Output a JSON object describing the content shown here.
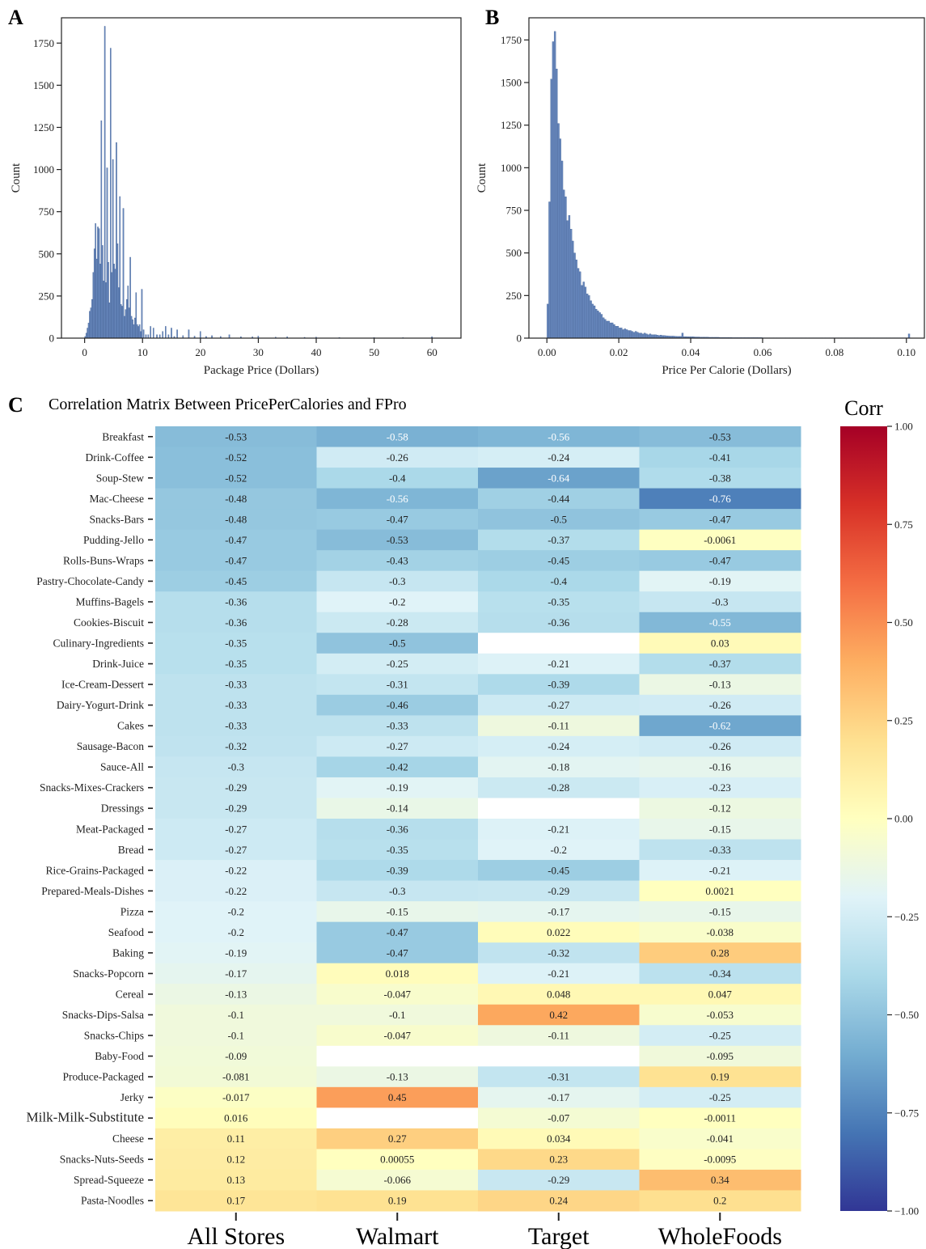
{
  "chart_data": [
    {
      "type": "histogram",
      "panel_label": "A",
      "xlabel": "Package Price (Dollars)",
      "ylabel": "Count",
      "xlim": [
        -4,
        65
      ],
      "ylim": [
        0,
        1900
      ],
      "xticks": [
        0,
        10,
        20,
        30,
        40,
        50,
        60
      ],
      "yticks": [
        0,
        250,
        500,
        750,
        1000,
        1250,
        1500,
        1750
      ],
      "bar_color": "#4c72b0",
      "bins": [
        {
          "x": 0.1,
          "v": 10
        },
        {
          "x": 0.3,
          "v": 30
        },
        {
          "x": 0.5,
          "v": 60
        },
        {
          "x": 0.7,
          "v": 90
        },
        {
          "x": 0.9,
          "v": 160
        },
        {
          "x": 1.1,
          "v": 180
        },
        {
          "x": 1.3,
          "v": 230
        },
        {
          "x": 1.5,
          "v": 390
        },
        {
          "x": 1.7,
          "v": 530
        },
        {
          "x": 1.9,
          "v": 680
        },
        {
          "x": 2.1,
          "v": 470
        },
        {
          "x": 2.3,
          "v": 660
        },
        {
          "x": 2.5,
          "v": 650
        },
        {
          "x": 2.7,
          "v": 440
        },
        {
          "x": 2.9,
          "v": 1290
        },
        {
          "x": 3.1,
          "v": 550
        },
        {
          "x": 3.3,
          "v": 340
        },
        {
          "x": 3.5,
          "v": 1850
        },
        {
          "x": 3.7,
          "v": 330
        },
        {
          "x": 3.9,
          "v": 1010
        },
        {
          "x": 4.1,
          "v": 450
        },
        {
          "x": 4.3,
          "v": 210
        },
        {
          "x": 4.5,
          "v": 1720
        },
        {
          "x": 4.7,
          "v": 390
        },
        {
          "x": 4.9,
          "v": 1060
        },
        {
          "x": 5.1,
          "v": 440
        },
        {
          "x": 5.3,
          "v": 410
        },
        {
          "x": 5.5,
          "v": 1160
        },
        {
          "x": 5.7,
          "v": 560
        },
        {
          "x": 5.9,
          "v": 300
        },
        {
          "x": 6.1,
          "v": 840
        },
        {
          "x": 6.3,
          "v": 200
        },
        {
          "x": 6.5,
          "v": 190
        },
        {
          "x": 6.7,
          "v": 770
        },
        {
          "x": 6.9,
          "v": 130
        },
        {
          "x": 7.1,
          "v": 170
        },
        {
          "x": 7.3,
          "v": 230
        },
        {
          "x": 7.5,
          "v": 310
        },
        {
          "x": 7.7,
          "v": 180
        },
        {
          "x": 7.9,
          "v": 480
        },
        {
          "x": 8.1,
          "v": 130
        },
        {
          "x": 8.3,
          "v": 110
        },
        {
          "x": 8.5,
          "v": 80
        },
        {
          "x": 8.7,
          "v": 120
        },
        {
          "x": 8.9,
          "v": 270
        },
        {
          "x": 9.1,
          "v": 80
        },
        {
          "x": 9.3,
          "v": 70
        },
        {
          "x": 9.5,
          "v": 80
        },
        {
          "x": 9.7,
          "v": 40
        },
        {
          "x": 9.9,
          "v": 290
        },
        {
          "x": 10.2,
          "v": 50
        },
        {
          "x": 10.6,
          "v": 20
        },
        {
          "x": 11.0,
          "v": 20
        },
        {
          "x": 11.4,
          "v": 70
        },
        {
          "x": 11.9,
          "v": 60
        },
        {
          "x": 12.5,
          "v": 20
        },
        {
          "x": 13.0,
          "v": 20
        },
        {
          "x": 13.5,
          "v": 40
        },
        {
          "x": 14.0,
          "v": 70
        },
        {
          "x": 14.5,
          "v": 20
        },
        {
          "x": 15.0,
          "v": 60
        },
        {
          "x": 15.5,
          "v": 10
        },
        {
          "x": 16.0,
          "v": 50
        },
        {
          "x": 17.0,
          "v": 15
        },
        {
          "x": 18.0,
          "v": 50
        },
        {
          "x": 19.0,
          "v": 12
        },
        {
          "x": 20.0,
          "v": 40
        },
        {
          "x": 21.0,
          "v": 10
        },
        {
          "x": 22.0,
          "v": 15
        },
        {
          "x": 23.5,
          "v": 10
        },
        {
          "x": 25.0,
          "v": 20
        },
        {
          "x": 27.0,
          "v": 8
        },
        {
          "x": 29.0,
          "v": 8
        },
        {
          "x": 30.0,
          "v": 12
        },
        {
          "x": 33.0,
          "v": 6
        },
        {
          "x": 35.0,
          "v": 8
        },
        {
          "x": 38.0,
          "v": 5
        },
        {
          "x": 40.0,
          "v": 6
        },
        {
          "x": 44.0,
          "v": 4
        },
        {
          "x": 50.0,
          "v": 4
        },
        {
          "x": 55.0,
          "v": 3
        },
        {
          "x": 60.0,
          "v": 8
        }
      ]
    },
    {
      "type": "histogram",
      "panel_label": "B",
      "xlabel": "Price Per Calorie (Dollars)",
      "ylabel": "Count",
      "xlim": [
        -0.005,
        0.105
      ],
      "ylim": [
        0,
        1880
      ],
      "xticks": [
        "0.00",
        "0.02",
        "0.04",
        "0.06",
        "0.08",
        "0.10"
      ],
      "yticks": [
        0,
        250,
        500,
        750,
        1000,
        1250,
        1500,
        1750
      ],
      "bar_color": "#4c72b0",
      "bin_width": 0.0005,
      "bin_start": 0.0,
      "values": [
        200,
        800,
        1520,
        1740,
        1800,
        1580,
        1260,
        1170,
        1040,
        870,
        830,
        690,
        720,
        640,
        570,
        500,
        460,
        410,
        390,
        310,
        330,
        300,
        260,
        250,
        220,
        200,
        190,
        170,
        160,
        150,
        140,
        120,
        110,
        100,
        100,
        90,
        90,
        80,
        70,
        70,
        60,
        60,
        50,
        55,
        50,
        45,
        45,
        40,
        35,
        40,
        35,
        30,
        30,
        25,
        30,
        25,
        20,
        25,
        20,
        20,
        20,
        18,
        16,
        18,
        15,
        15,
        14,
        13,
        12,
        12,
        12,
        11,
        10,
        10,
        10,
        30,
        9,
        9,
        8,
        8,
        8,
        8,
        7,
        7,
        7,
        6,
        6,
        6,
        6,
        6,
        5,
        5,
        5,
        5,
        5,
        5,
        4,
        4,
        4,
        4,
        4,
        4,
        4,
        3,
        3,
        3,
        3,
        3,
        3,
        3,
        3,
        3,
        3,
        3,
        3,
        3,
        3,
        3,
        3,
        3,
        2,
        2,
        2,
        2,
        2,
        2,
        2,
        2,
        2,
        2,
        2,
        2,
        2,
        2,
        2,
        2,
        2,
        2,
        2,
        2,
        2,
        2,
        2,
        2,
        2,
        2,
        2,
        2,
        2,
        2,
        2,
        2,
        2,
        2,
        2,
        2,
        2,
        2,
        2,
        2,
        2,
        2,
        2,
        2,
        2,
        2,
        2,
        2,
        2,
        2,
        2,
        2,
        2,
        2,
        2,
        2,
        2,
        2,
        2,
        2,
        2,
        2,
        2,
        2,
        2,
        2,
        2,
        2,
        2,
        2,
        2,
        2,
        2,
        2,
        2,
        2,
        2,
        2,
        2,
        2,
        2,
        25
      ]
    },
    {
      "type": "heatmap",
      "panel_label": "C",
      "title": "Correlation Matrix Between PricePerCalories and FPro",
      "colorbar_title": "Corr",
      "colorbar_ticks": [
        "1.00",
        "0.75",
        "0.50",
        "0.25",
        "0.00",
        "−0.25",
        "−0.50",
        "−0.75",
        "−1.00"
      ],
      "vmin": -1,
      "vmax": 1,
      "colormap": "RdYlBu_r",
      "columns": [
        "All Stores",
        "Walmart",
        "Target",
        "WholeFoods"
      ],
      "rows": [
        {
          "name": "Breakfast",
          "values": [
            "-0.53",
            "-0.58",
            "-0.56",
            "-0.53"
          ]
        },
        {
          "name": "Drink-Coffee",
          "values": [
            "-0.52",
            "-0.26",
            "-0.24",
            "-0.41"
          ]
        },
        {
          "name": "Soup-Stew",
          "values": [
            "-0.52",
            "-0.4",
            "-0.64",
            "-0.38"
          ]
        },
        {
          "name": "Mac-Cheese",
          "values": [
            "-0.48",
            "-0.56",
            "-0.44",
            "-0.76"
          ]
        },
        {
          "name": "Snacks-Bars",
          "values": [
            "-0.48",
            "-0.47",
            "-0.5",
            "-0.47"
          ]
        },
        {
          "name": "Pudding-Jello",
          "values": [
            "-0.47",
            "-0.53",
            "-0.37",
            "-0.0061"
          ]
        },
        {
          "name": "Rolls-Buns-Wraps",
          "values": [
            "-0.47",
            "-0.43",
            "-0.45",
            "-0.47"
          ]
        },
        {
          "name": "Pastry-Chocolate-Candy",
          "values": [
            "-0.45",
            "-0.3",
            "-0.4",
            "-0.19"
          ]
        },
        {
          "name": "Muffins-Bagels",
          "values": [
            "-0.36",
            "-0.2",
            "-0.35",
            "-0.3"
          ]
        },
        {
          "name": "Cookies-Biscuit",
          "values": [
            "-0.36",
            "-0.28",
            "-0.36",
            "-0.55"
          ]
        },
        {
          "name": "Culinary-Ingredients",
          "values": [
            "-0.35",
            "-0.5",
            "",
            "0.03"
          ]
        },
        {
          "name": "Drink-Juice",
          "values": [
            "-0.35",
            "-0.25",
            "-0.21",
            "-0.37"
          ]
        },
        {
          "name": "Ice-Cream-Dessert",
          "values": [
            "-0.33",
            "-0.31",
            "-0.39",
            "-0.13"
          ]
        },
        {
          "name": "Dairy-Yogurt-Drink",
          "values": [
            "-0.33",
            "-0.46",
            "-0.27",
            "-0.26"
          ]
        },
        {
          "name": "Cakes",
          "values": [
            "-0.33",
            "-0.33",
            "-0.11",
            "-0.62"
          ]
        },
        {
          "name": "Sausage-Bacon",
          "values": [
            "-0.32",
            "-0.27",
            "-0.24",
            "-0.26"
          ]
        },
        {
          "name": "Sauce-All",
          "values": [
            "-0.3",
            "-0.42",
            "-0.18",
            "-0.16"
          ]
        },
        {
          "name": "Snacks-Mixes-Crackers",
          "values": [
            "-0.29",
            "-0.19",
            "-0.28",
            "-0.23"
          ]
        },
        {
          "name": "Dressings",
          "values": [
            "-0.29",
            "-0.14",
            "",
            "-0.12"
          ]
        },
        {
          "name": "Meat-Packaged",
          "values": [
            "-0.27",
            "-0.36",
            "-0.21",
            "-0.15"
          ]
        },
        {
          "name": "Bread",
          "values": [
            "-0.27",
            "-0.35",
            "-0.2",
            "-0.33"
          ]
        },
        {
          "name": "Rice-Grains-Packaged",
          "values": [
            "-0.22",
            "-0.39",
            "-0.45",
            "-0.21"
          ]
        },
        {
          "name": "Prepared-Meals-Dishes",
          "values": [
            "-0.22",
            "-0.3",
            "-0.29",
            "0.0021"
          ]
        },
        {
          "name": "Pizza",
          "values": [
            "-0.2",
            "-0.15",
            "-0.17",
            "-0.15"
          ]
        },
        {
          "name": "Seafood",
          "values": [
            "-0.2",
            "-0.47",
            "0.022",
            "-0.038"
          ]
        },
        {
          "name": "Baking",
          "values": [
            "-0.19",
            "-0.47",
            "-0.32",
            "0.28"
          ]
        },
        {
          "name": "Snacks-Popcorn",
          "values": [
            "-0.17",
            "0.018",
            "-0.21",
            "-0.34"
          ]
        },
        {
          "name": "Cereal",
          "values": [
            "-0.13",
            "-0.047",
            "0.048",
            "0.047"
          ]
        },
        {
          "name": "Snacks-Dips-Salsa",
          "values": [
            "-0.1",
            "-0.1",
            "0.42",
            "-0.053"
          ]
        },
        {
          "name": "Snacks-Chips",
          "values": [
            "-0.1",
            "-0.047",
            "-0.11",
            "-0.25"
          ]
        },
        {
          "name": "Baby-Food",
          "values": [
            "-0.09",
            "",
            "",
            "-0.095"
          ]
        },
        {
          "name": "Produce-Packaged",
          "values": [
            "-0.081",
            "-0.13",
            "-0.31",
            "0.19"
          ]
        },
        {
          "name": "Jerky",
          "values": [
            "-0.017",
            "0.45",
            "-0.17",
            "-0.25"
          ]
        },
        {
          "name": "Milk-Milk-Substitute",
          "values": [
            "0.016",
            "",
            "-0.07",
            "-0.0011"
          ]
        },
        {
          "name": "Cheese",
          "values": [
            "0.11",
            "0.27",
            "0.034",
            "-0.041"
          ]
        },
        {
          "name": "Snacks-Nuts-Seeds",
          "values": [
            "0.12",
            "0.00055",
            "0.23",
            "-0.0095"
          ]
        },
        {
          "name": "Spread-Squeeze",
          "values": [
            "0.13",
            "-0.066",
            "-0.29",
            "0.34"
          ]
        },
        {
          "name": "Pasta-Noodles",
          "values": [
            "0.17",
            "0.19",
            "0.24",
            "0.2"
          ]
        }
      ]
    }
  ]
}
